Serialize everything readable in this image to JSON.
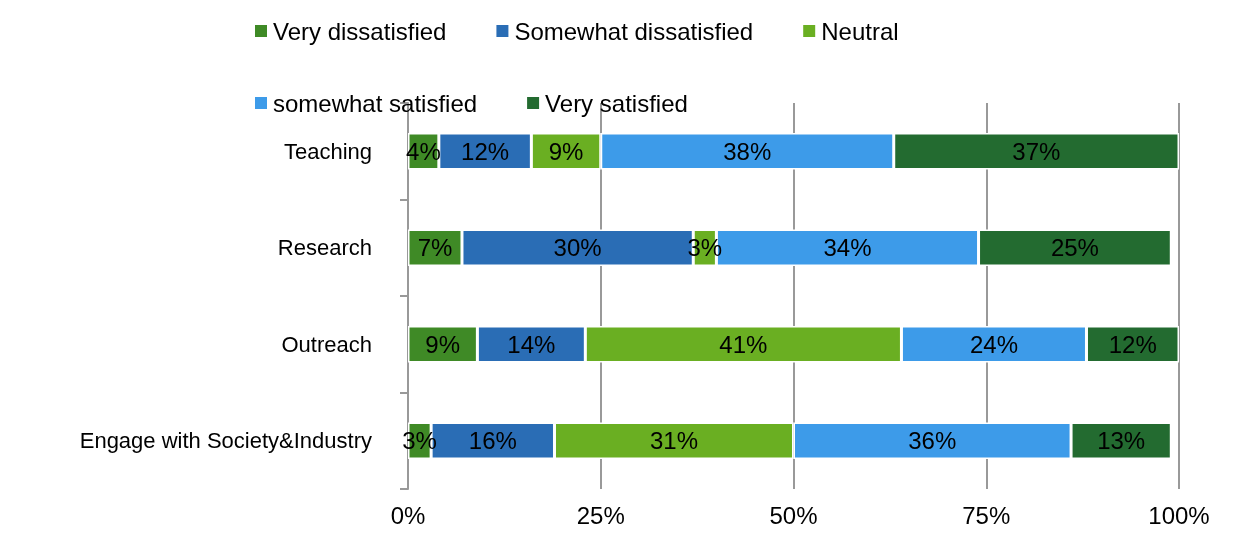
{
  "chart_data": {
    "type": "bar",
    "orientation": "horizontal",
    "stacked": true,
    "categories": [
      "Teaching",
      "Research",
      "Outreach",
      "Engage with Society&Industry"
    ],
    "series": [
      {
        "name": "Very dissatisfied",
        "color": "#3f8a26",
        "values": [
          4,
          7,
          9,
          3
        ],
        "value_labels": [
          "4%",
          "7%",
          "9%",
          "3%"
        ]
      },
      {
        "name": "Somewhat dissatisfied",
        "color": "#2a6db5",
        "values": [
          12,
          30,
          14,
          16
        ],
        "value_labels": [
          "12%",
          "30%",
          "14%",
          "16%"
        ]
      },
      {
        "name": "Neutral",
        "color": "#6aaf22",
        "values": [
          9,
          3,
          41,
          31
        ],
        "value_labels": [
          "9%",
          "3%",
          "41%",
          "31%"
        ]
      },
      {
        "name": "somewhat satisfied",
        "color": "#3d9be9",
        "values": [
          38,
          34,
          24,
          36
        ],
        "value_labels": [
          "38%",
          "34%",
          "24%",
          "36%"
        ]
      },
      {
        "name": "Very satisfied",
        "color": "#236b30",
        "values": [
          37,
          25,
          12,
          13
        ],
        "value_labels": [
          "37%",
          "25%",
          "12%",
          "13%"
        ]
      }
    ],
    "xlim": [
      0,
      100
    ],
    "xticks": [
      {
        "value": 0,
        "label": "0%"
      },
      {
        "value": 25,
        "label": "25%"
      },
      {
        "value": 50,
        "label": "50%"
      },
      {
        "value": 75,
        "label": "75%"
      },
      {
        "value": 100,
        "label": "100%"
      }
    ],
    "grid": "x",
    "legend": "top"
  }
}
